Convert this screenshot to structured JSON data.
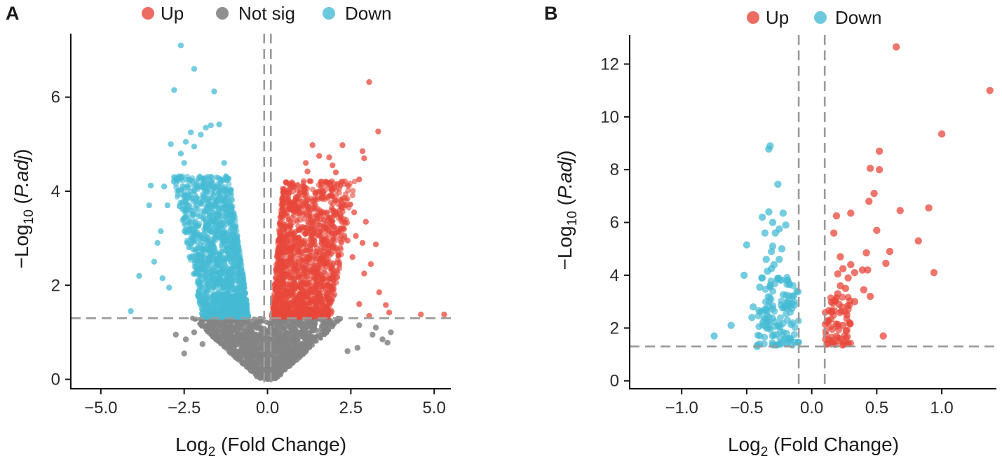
{
  "figure": {
    "panels": [
      "A",
      "B"
    ]
  },
  "colors": {
    "up": "#E8473A",
    "not_sig": "#848484",
    "down": "#46BBD4",
    "threshold_line": "#9A9A9A"
  },
  "chart_data": [
    {
      "panel": "A",
      "type": "scatter",
      "title": "",
      "xlabel": "Log2 (Fold Change)",
      "xlabel_main": "Log",
      "xlabel_sub": "2",
      "xlabel_rest": " (Fold Change)",
      "ylabel": "-Log10 (P.adj)",
      "ylabel_main": "−Log",
      "ylabel_sub": "10",
      "ylabel_rest": " (",
      "ylabel_italic": "P.adj",
      "ylabel_end": ")",
      "xlim": [
        -5.9,
        5.5
      ],
      "ylim": [
        -0.2,
        7.35
      ],
      "xticks": [
        -5.0,
        -2.5,
        0.0,
        2.5,
        5.0
      ],
      "xtick_labels": [
        "−5.0",
        "−2.5",
        "0.0",
        "2.5",
        "5.0"
      ],
      "yticks": [
        0,
        2,
        4,
        6
      ],
      "ytick_labels": [
        "0",
        "2",
        "4",
        "6"
      ],
      "legend": [
        {
          "label": "Up",
          "color_key": "up"
        },
        {
          "label": "Not sig",
          "color_key": "not_sig"
        },
        {
          "label": "Down",
          "color_key": "down"
        }
      ],
      "legend_position": "top",
      "thresholds": {
        "vertical": [
          -0.1,
          0.1
        ],
        "horizontal": 1.3
      },
      "series": [
        {
          "name": "Up",
          "color_key": "up",
          "points": [
            [
              3.05,
              6.32
            ],
            [
              3.32,
              5.27
            ],
            [
              2.85,
              4.85
            ],
            [
              2.9,
              4.7
            ],
            [
              2.25,
              4.98
            ],
            [
              1.35,
              4.98
            ],
            [
              1.55,
              4.75
            ],
            [
              1.85,
              4.72
            ],
            [
              1.95,
              4.55
            ],
            [
              1.15,
              4.6
            ],
            [
              2.05,
              4.4
            ],
            [
              1.2,
              4.42
            ],
            [
              1.6,
              4.2
            ],
            [
              2.75,
              4.25
            ],
            [
              1.75,
              4.2
            ],
            [
              1.05,
              4.1
            ],
            [
              0.85,
              3.85
            ],
            [
              2.35,
              3.7
            ],
            [
              2.6,
              3.55
            ],
            [
              2.95,
              3.35
            ],
            [
              2.85,
              2.9
            ],
            [
              3.25,
              2.87
            ],
            [
              2.55,
              2.6
            ],
            [
              2.9,
              2.25
            ],
            [
              3.1,
              2.45
            ],
            [
              3.35,
              1.85
            ],
            [
              2.75,
              1.6
            ],
            [
              3.55,
              1.58
            ],
            [
              3.05,
              1.35
            ],
            [
              3.65,
              1.42
            ],
            [
              4.6,
              1.38
            ],
            [
              5.3,
              1.38
            ],
            [
              2.2,
              3.2
            ],
            [
              2.4,
              2.95
            ],
            [
              2.65,
              3.05
            ]
          ]
        },
        {
          "name": "Down",
          "color_key": "down",
          "points": [
            [
              -2.6,
              7.1
            ],
            [
              -2.2,
              6.6
            ],
            [
              -2.8,
              6.15
            ],
            [
              -1.6,
              6.12
            ],
            [
              -4.1,
              1.45
            ],
            [
              -3.85,
              2.2
            ],
            [
              -3.5,
              4.12
            ],
            [
              -3.55,
              3.7
            ],
            [
              -3.1,
              4.1
            ],
            [
              -2.6,
              4.8
            ],
            [
              -2.45,
              5.05
            ],
            [
              -2.2,
              4.95
            ],
            [
              -2.3,
              5.25
            ],
            [
              -1.85,
              5.35
            ],
            [
              -1.7,
              5.4
            ],
            [
              -1.45,
              5.42
            ],
            [
              -3.0,
              3.7
            ],
            [
              -3.4,
              2.5
            ],
            [
              -3.15,
              2.15
            ],
            [
              -2.95,
              1.95
            ],
            [
              -2.8,
              4.3
            ],
            [
              -1.3,
              4.6
            ],
            [
              -2.9,
              5.0
            ],
            [
              -2.5,
              4.6
            ],
            [
              -2.0,
              5.2
            ],
            [
              -3.2,
              3.15
            ],
            [
              -3.3,
              2.9
            ]
          ]
        },
        {
          "name": "Not sig",
          "color_key": "not_sig",
          "points": [
            [
              -2.75,
              0.95
            ],
            [
              -2.45,
              0.85
            ],
            [
              -2.2,
              1.0
            ],
            [
              -1.95,
              0.75
            ],
            [
              2.75,
              1.15
            ],
            [
              3.25,
              1.1
            ],
            [
              3.7,
              1.0
            ],
            [
              3.45,
              0.85
            ],
            [
              3.15,
              0.95
            ],
            [
              2.7,
              0.67
            ],
            [
              3.6,
              0.78
            ],
            [
              -2.5,
              0.55
            ],
            [
              2.4,
              0.6
            ]
          ]
        }
      ]
    },
    {
      "panel": "B",
      "type": "scatter",
      "title": "",
      "xlabel": "Log2 (Fold Change)",
      "xlabel_main": "Log",
      "xlabel_sub": "2",
      "xlabel_rest": " (Fold Change)",
      "ylabel": "-Log10 (P.adj)",
      "ylabel_main": "−Log",
      "ylabel_sub": "10",
      "ylabel_rest": " (",
      "ylabel_italic": "P.adj",
      "ylabel_end": ")",
      "xlim": [
        -1.4,
        1.42
      ],
      "ylim": [
        -0.3,
        13.1
      ],
      "xticks": [
        -1.0,
        -0.5,
        0.0,
        0.5,
        1.0
      ],
      "xtick_labels": [
        "−1.0",
        "−0.5",
        "0.0",
        "0.5",
        "1.0"
      ],
      "yticks": [
        0,
        2,
        4,
        6,
        8,
        10,
        12
      ],
      "ytick_labels": [
        "0",
        "2",
        "4",
        "6",
        "8",
        "10",
        "12"
      ],
      "legend": [
        {
          "label": "Up",
          "color_key": "up"
        },
        {
          "label": "Down",
          "color_key": "down"
        }
      ],
      "legend_position": "top",
      "thresholds": {
        "vertical": [
          -0.1,
          0.1
        ],
        "horizontal": 1.3
      },
      "series": [
        {
          "name": "Up",
          "color_key": "up",
          "points": [
            [
              0.65,
              12.65
            ],
            [
              1.37,
              11.0
            ],
            [
              1.0,
              9.35
            ],
            [
              0.52,
              8.7
            ],
            [
              0.45,
              8.05
            ],
            [
              0.52,
              8.0
            ],
            [
              0.48,
              7.1
            ],
            [
              0.44,
              6.8
            ],
            [
              0.68,
              6.45
            ],
            [
              0.9,
              6.55
            ],
            [
              0.3,
              6.35
            ],
            [
              0.19,
              6.25
            ],
            [
              0.5,
              5.7
            ],
            [
              0.17,
              5.6
            ],
            [
              0.82,
              5.3
            ],
            [
              0.6,
              4.9
            ],
            [
              0.42,
              4.85
            ],
            [
              0.57,
              4.45
            ],
            [
              0.3,
              4.4
            ],
            [
              0.22,
              4.7
            ],
            [
              0.94,
              4.1
            ],
            [
              0.43,
              4.2
            ],
            [
              0.39,
              4.2
            ],
            [
              0.33,
              4.1
            ],
            [
              0.24,
              4.25
            ],
            [
              0.2,
              4.05
            ],
            [
              0.55,
              1.7
            ],
            [
              0.28,
              3.9
            ],
            [
              0.22,
              3.6
            ],
            [
              0.26,
              3.5
            ],
            [
              0.2,
              3.3
            ],
            [
              0.4,
              3.45
            ],
            [
              0.45,
              3.2
            ],
            [
              0.33,
              3.0
            ],
            [
              0.21,
              2.9
            ],
            [
              0.18,
              3.05
            ],
            [
              0.27,
              2.5
            ],
            [
              0.15,
              2.6
            ],
            [
              0.24,
              2.1
            ],
            [
              0.29,
              2.2
            ]
          ]
        },
        {
          "name": "Down",
          "color_key": "down",
          "points": [
            [
              -0.32,
              8.9
            ],
            [
              -0.33,
              8.78
            ],
            [
              -0.26,
              7.45
            ],
            [
              -0.33,
              6.4
            ],
            [
              -0.22,
              6.35
            ],
            [
              -0.38,
              6.2
            ],
            [
              -0.3,
              6.0
            ],
            [
              -0.2,
              5.9
            ],
            [
              -0.25,
              5.75
            ],
            [
              -0.28,
              5.6
            ],
            [
              -0.36,
              5.6
            ],
            [
              -0.5,
              5.15
            ],
            [
              -0.3,
              5.1
            ],
            [
              -0.23,
              5.0
            ],
            [
              -0.31,
              4.9
            ],
            [
              -0.35,
              4.6
            ],
            [
              -0.25,
              4.6
            ],
            [
              -0.29,
              4.4
            ],
            [
              -0.31,
              4.25
            ],
            [
              -0.34,
              4.15
            ],
            [
              -0.38,
              3.9
            ],
            [
              -0.52,
              4.0
            ],
            [
              -0.4,
              3.55
            ],
            [
              -0.45,
              2.8
            ],
            [
              -0.62,
              2.1
            ],
            [
              -0.46,
              2.4
            ],
            [
              -0.75,
              1.7
            ],
            [
              -0.42,
              1.3
            ],
            [
              -0.35,
              2.7
            ]
          ]
        },
        {
          "name": "Not sig",
          "color_key": "not_sig",
          "points": []
        }
      ]
    }
  ]
}
